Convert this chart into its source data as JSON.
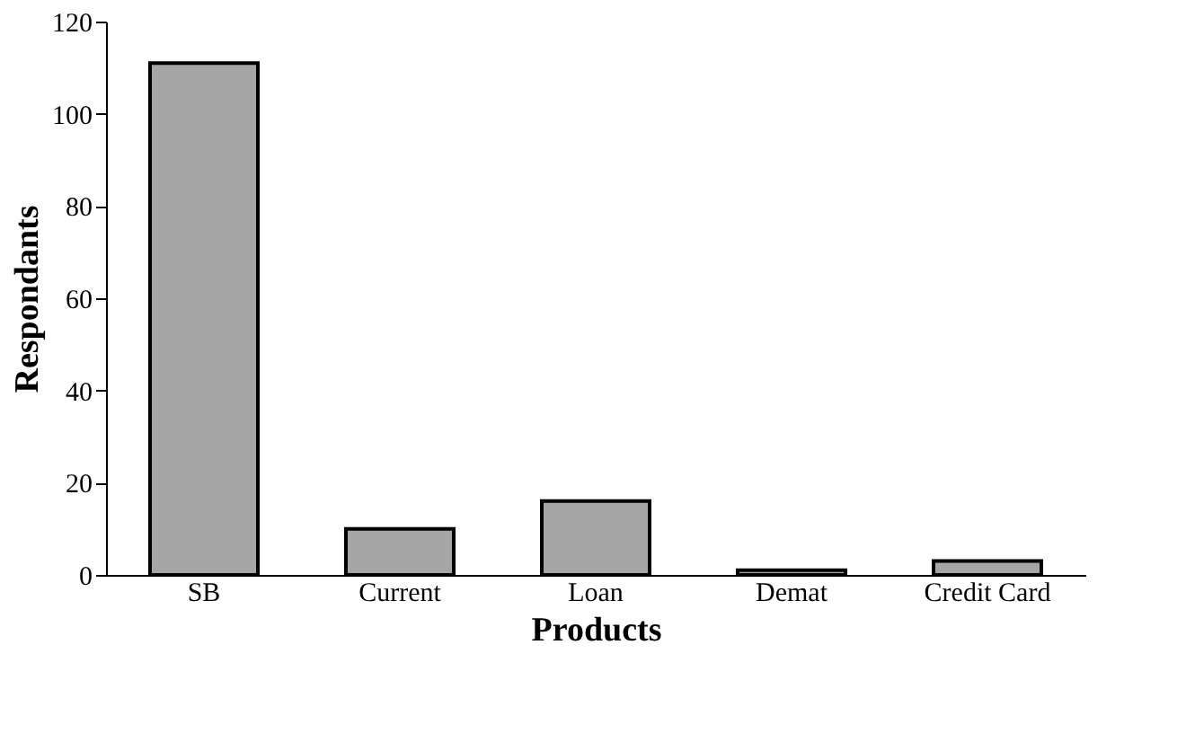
{
  "chart_data": {
    "type": "bar",
    "xlabel": "Products",
    "ylabel": "Respondants",
    "categories": [
      "SB",
      "Current",
      "Loan",
      "Demat",
      "Credit Card"
    ],
    "values": [
      111,
      10,
      16,
      1,
      3
    ],
    "color": "#a6a6a6",
    "ylim": [
      0,
      120
    ],
    "yticks": [
      0,
      20,
      40,
      60,
      80,
      100,
      120
    ],
    "grid": false
  }
}
